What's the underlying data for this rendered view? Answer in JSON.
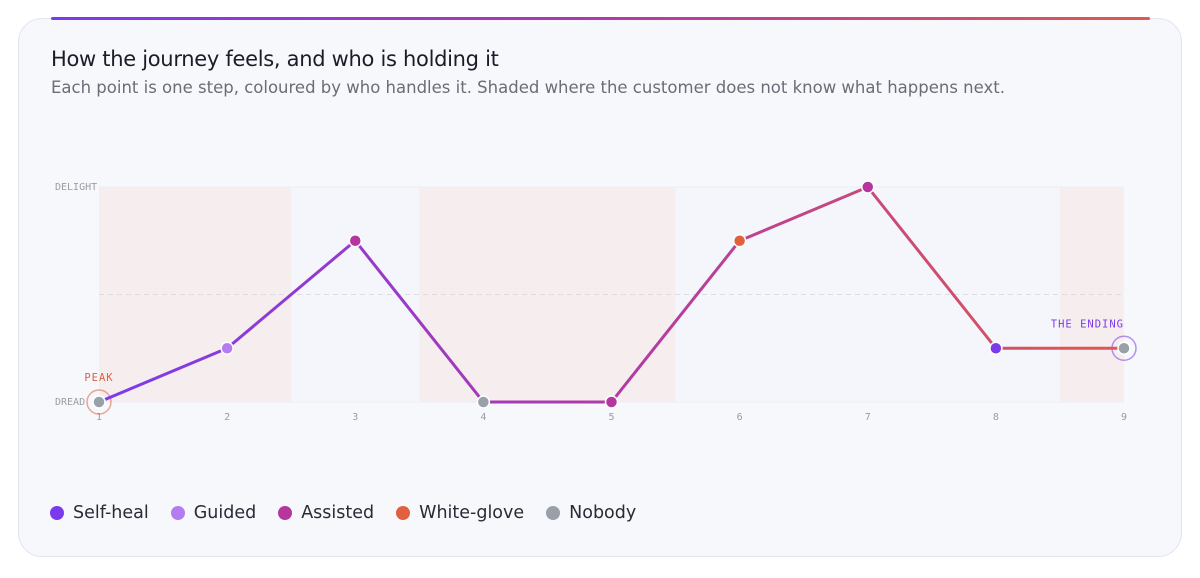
{
  "chart_data": {
    "type": "line",
    "title": "How the journey feels, and who is holding it",
    "subtitle": "Each point is one step, coloured by who handles it. Shaded where the customer does not know what happens next.",
    "x": [
      1,
      2,
      3,
      4,
      5,
      6,
      7,
      8,
      9
    ],
    "values": [
      0,
      1,
      3,
      0,
      0,
      3,
      4,
      1,
      1
    ],
    "handlers": [
      "Nobody",
      "Guided",
      "Assisted",
      "Nobody",
      "Assisted",
      "White-glove",
      "Assisted",
      "Self-heal",
      "Nobody"
    ],
    "legend": [
      {
        "name": "Self-heal",
        "color": "#7c3aed"
      },
      {
        "name": "Guided",
        "color": "#b57bf0"
      },
      {
        "name": "Assisted",
        "color": "#b5379e"
      },
      {
        "name": "White-glove",
        "color": "#e0603f"
      },
      {
        "name": "Nobody",
        "color": "#9aa0a9"
      }
    ],
    "line_gradient": [
      "#7c3aed",
      "#b03aa8",
      "#e0584f"
    ],
    "xlim": [
      1,
      9
    ],
    "xticks": [
      1,
      2,
      3,
      4,
      5,
      6,
      7,
      8,
      9
    ],
    "ylim": [
      0,
      4
    ],
    "yticks": [
      {
        "value": 0,
        "label": "DREAD"
      },
      {
        "value": 4,
        "label": "DELIGHT"
      }
    ],
    "reference_line": 2,
    "shaded": [
      [
        1,
        2.5
      ],
      [
        3.5,
        5.5
      ],
      [
        8.5,
        9
      ]
    ],
    "shade_color": "#f6eeee",
    "annotations": [
      {
        "text": "PEAK",
        "x": 1,
        "color": "#e0603f"
      },
      {
        "text": "THE ENDING",
        "x": 9,
        "color": "#7c3aed"
      }
    ]
  }
}
